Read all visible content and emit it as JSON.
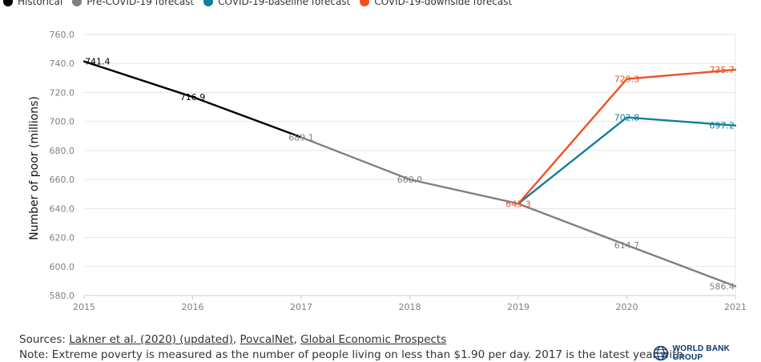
{
  "legend": [
    {
      "label": "Historical",
      "color": "#000000"
    },
    {
      "label": "Pre-COVID-19 forecast",
      "color": "#808080"
    },
    {
      "label": "COVID-19-baseline forecast",
      "color": "#127f9a"
    },
    {
      "label": "COVID-19-downside forecast",
      "color": "#f05023"
    }
  ],
  "chart_data": {
    "type": "line",
    "title": "",
    "xlabel": "",
    "ylabel": "Number of poor (millions)",
    "x": [
      2015,
      2016,
      2017,
      2018,
      2019,
      2020,
      2021
    ],
    "ylim": [
      580,
      760
    ],
    "yticks": [
      "580.0",
      "600.0",
      "620.0",
      "640.0",
      "660.0",
      "680.0",
      "700.0",
      "720.0",
      "740.0",
      "760.0"
    ],
    "xticks": [
      "2015",
      "2016",
      "2017",
      "2018",
      "2019",
      "2020",
      "2021"
    ],
    "grid": true,
    "series": [
      {
        "name": "Historical",
        "color": "#000000",
        "points": [
          [
            2015,
            741.4
          ],
          [
            2016,
            716.9
          ],
          [
            2017,
            689.1
          ]
        ],
        "labels": [
          "741.4",
          "716.9",
          ""
        ]
      },
      {
        "name": "Pre-COVID-19 forecast",
        "color": "#808080",
        "points": [
          [
            2017,
            689.1
          ],
          [
            2018,
            660.0
          ],
          [
            2019,
            643.3
          ],
          [
            2020,
            614.7
          ],
          [
            2021,
            586.4
          ]
        ],
        "labels": [
          "689.1",
          "660.0",
          "",
          "614.7",
          "586.4"
        ]
      },
      {
        "name": "COVID-19-baseline forecast",
        "color": "#127f9a",
        "points": [
          [
            2019,
            643.3
          ],
          [
            2020,
            702.8
          ],
          [
            2021,
            697.2
          ]
        ],
        "labels": [
          "",
          "702.8",
          "697.2"
        ]
      },
      {
        "name": "COVID-19-downside forecast",
        "color": "#f05023",
        "points": [
          [
            2019,
            643.3
          ],
          [
            2020,
            729.3
          ],
          [
            2021,
            735.7
          ]
        ],
        "labels": [
          "643.3",
          "729.3",
          "735.7"
        ]
      }
    ]
  },
  "footer": {
    "sources_prefix": "Sources: ",
    "source_links": [
      "Lakner et al. (2020) (updated)",
      "PovcalNet",
      "Global Economic Prospects"
    ],
    "note": "Note: Extreme poverty is measured as the number of people living on less than $1.90 per day. 2017 is the latest year with",
    "logo_text": "WORLD BANK GROUP"
  }
}
